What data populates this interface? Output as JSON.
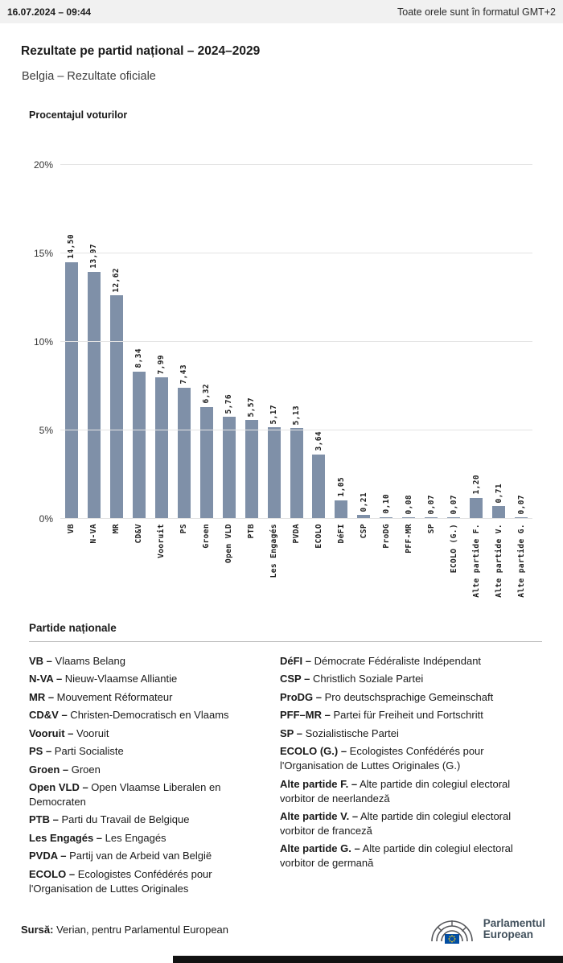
{
  "header": {
    "datetime": "16.07.2024 – 09:44",
    "timezone_note": "Toate orele sunt în formatul GMT+2"
  },
  "page": {
    "title": "Rezultate pe partid național – 2024–2029",
    "subtitle": "Belgia – Rezultate oficiale"
  },
  "chart_data": {
    "type": "bar",
    "title": "Procentajul voturilor",
    "categories": [
      "VB",
      "N-VA",
      "MR",
      "CD&V",
      "Vooruit",
      "PS",
      "Groen",
      "Open VLD",
      "PTB",
      "Les Engagés",
      "PVDA",
      "ECOLO",
      "DéFI",
      "CSP",
      "ProDG",
      "PFF-MR",
      "SP",
      "ECOLO (G.)",
      "Alte partide F.",
      "Alte partide V.",
      "Alte partide G."
    ],
    "values": [
      14.5,
      13.97,
      12.62,
      8.34,
      7.99,
      7.43,
      6.32,
      5.76,
      5.57,
      5.17,
      5.13,
      3.64,
      1.05,
      0.21,
      0.1,
      0.08,
      0.07,
      0.07,
      1.2,
      0.71,
      0.07
    ],
    "value_labels": [
      "14,50",
      "13,97",
      "12,62",
      "8,34",
      "7,99",
      "7,43",
      "6,32",
      "5,76",
      "5,57",
      "5,17",
      "5,13",
      "3,64",
      "1,05",
      "0,21",
      "0,10",
      "0,08",
      "0,07",
      "0,07",
      "1,20",
      "0,71",
      "0,07"
    ],
    "xlabel": "",
    "ylabel": "",
    "ylim": [
      0,
      20
    ],
    "yticks": [
      "0%",
      "5%",
      "10%",
      "15%",
      "20%"
    ],
    "grid": true,
    "legend_position": "none",
    "bar_color": "#7f90a8"
  },
  "legend": {
    "heading": "Partide naționale",
    "left": [
      {
        "abbr": "VB –",
        "name": "Vlaams Belang"
      },
      {
        "abbr": "N-VA –",
        "name": "Nieuw-Vlaamse Alliantie"
      },
      {
        "abbr": "MR –",
        "name": "Mouvement Réformateur"
      },
      {
        "abbr": "CD&V –",
        "name": "Christen-Democratisch en Vlaams"
      },
      {
        "abbr": "Vooruit –",
        "name": "Vooruit"
      },
      {
        "abbr": "PS –",
        "name": "Parti Socialiste"
      },
      {
        "abbr": "Groen –",
        "name": "Groen"
      },
      {
        "abbr": "Open VLD –",
        "name": "Open Vlaamse Liberalen en Democraten"
      },
      {
        "abbr": "PTB –",
        "name": "Parti du Travail de Belgique"
      },
      {
        "abbr": "Les Engagés –",
        "name": "Les Engagés"
      },
      {
        "abbr": "PVDA –",
        "name": "Partij van de Arbeid van België"
      },
      {
        "abbr": "ECOLO –",
        "name": "Ecologistes Confédérés pour l'Organisation de Luttes Originales"
      }
    ],
    "right": [
      {
        "abbr": "DéFI –",
        "name": "Démocrate Fédéraliste Indépendant"
      },
      {
        "abbr": "CSP –",
        "name": "Christlich Soziale Partei"
      },
      {
        "abbr": "ProDG –",
        "name": "Pro deutschsprachige Gemeinschaft"
      },
      {
        "abbr": "PFF–MR –",
        "name": "Partei für Freiheit und Fortschritt"
      },
      {
        "abbr": "SP –",
        "name": "Sozialistische Partei"
      },
      {
        "abbr": "ECOLO (G.) –",
        "name": "Ecologistes Confédérés pour l'Organisation de Luttes Originales (G.)"
      },
      {
        "abbr": "Alte partide F. –",
        "name": "Alte partide din colegiul electoral vorbitor de neerlandeză"
      },
      {
        "abbr": "Alte partide V. –",
        "name": "Alte partide din colegiul electoral vorbitor de franceză"
      },
      {
        "abbr": "Alte partide G. –",
        "name": "Alte partide din colegiul electoral vorbitor de germană"
      }
    ]
  },
  "footer": {
    "source_label": "Sursă:",
    "source_text": "Verian, pentru Parlamentul European",
    "logo_line1": "Parlamentul",
    "logo_line2": "European"
  }
}
